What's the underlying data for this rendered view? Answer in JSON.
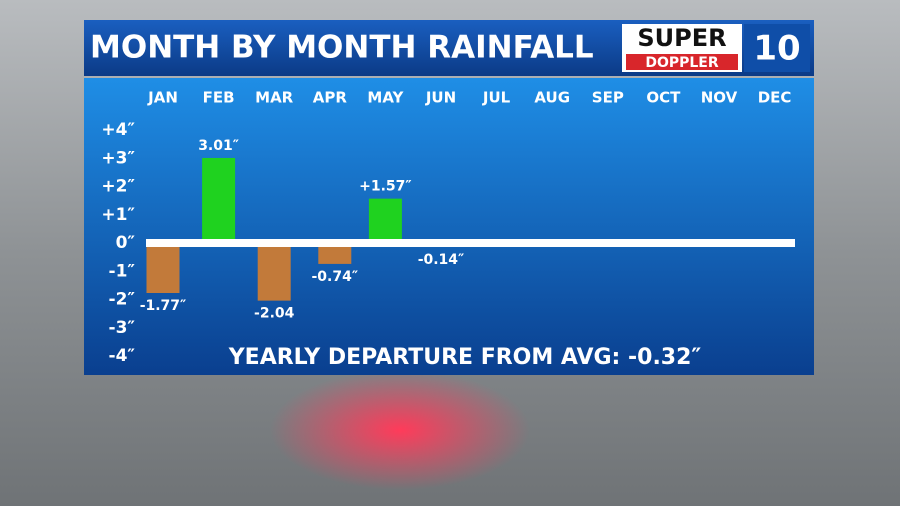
{
  "chart_data": {
    "type": "bar",
    "title": "MONTH BY MONTH RAINFALL",
    "annotation": "YEARLY DEPARTURE FROM AVG: -0.32″",
    "logo": {
      "top": "SUPER",
      "bottom": "DOPPLER",
      "number": "10"
    },
    "categories": [
      "JAN",
      "FEB",
      "MAR",
      "APR",
      "MAY",
      "JUN",
      "JUL",
      "AUG",
      "SEP",
      "OCT",
      "NOV",
      "DEC"
    ],
    "values": [
      -1.77,
      3.01,
      -2.04,
      -0.74,
      1.57,
      -0.14,
      null,
      null,
      null,
      null,
      null,
      null
    ],
    "value_labels": [
      "-1.77″",
      "3.01″",
      "-2.04",
      "-0.74″",
      "+1.57″",
      "-0.14″",
      null,
      null,
      null,
      null,
      null,
      null
    ],
    "positive_color": "#1fd21f",
    "negative_color": "#c27a3a",
    "ylim": [
      -4,
      4
    ],
    "yticks": [
      {
        "value": 4,
        "label": "+4″"
      },
      {
        "value": 3,
        "label": "+3″"
      },
      {
        "value": 2,
        "label": "+2″"
      },
      {
        "value": 1,
        "label": "+1″"
      },
      {
        "value": 0,
        "label": "0″"
      },
      {
        "value": -1,
        "label": "-1″"
      },
      {
        "value": -2,
        "label": "-2″"
      },
      {
        "value": -3,
        "label": "-3″"
      },
      {
        "value": -4,
        "label": "-4″"
      }
    ]
  }
}
